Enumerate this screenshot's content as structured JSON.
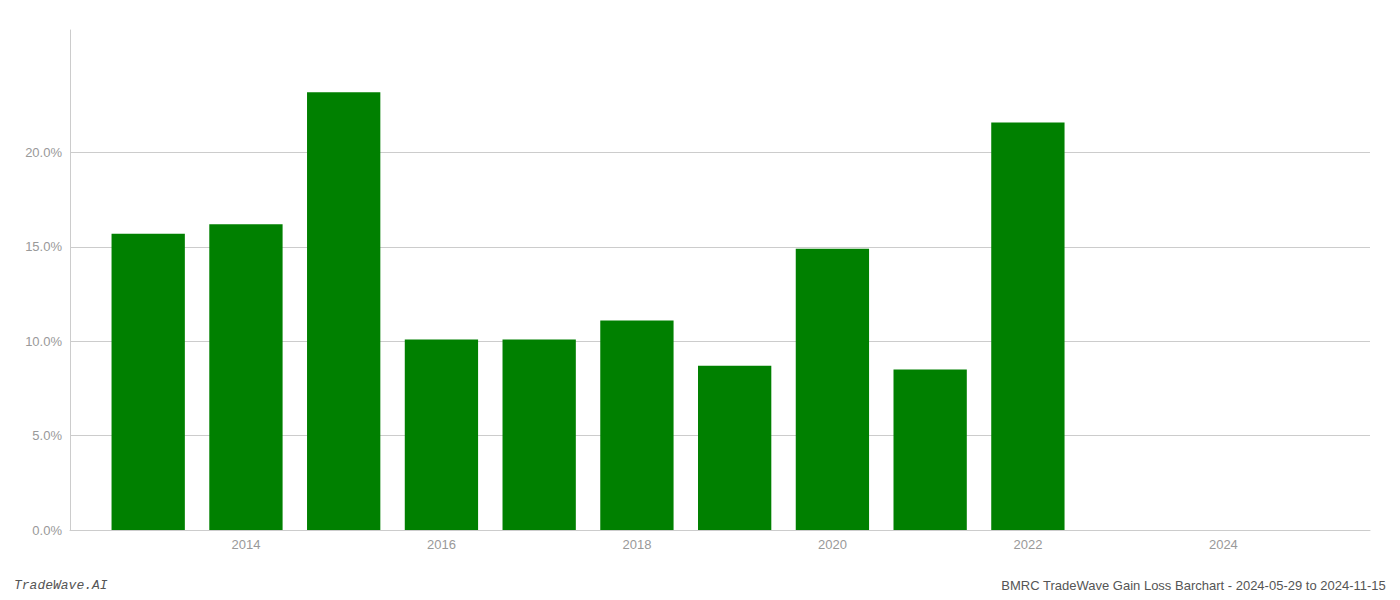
{
  "chart_data": {
    "type": "bar",
    "x": [
      2013,
      2014,
      2015,
      2016,
      2017,
      2018,
      2019,
      2020,
      2021,
      2022
    ],
    "values": [
      0.157,
      0.162,
      0.232,
      0.101,
      0.101,
      0.111,
      0.087,
      0.149,
      0.085,
      0.216
    ],
    "color": "#008000",
    "xlim": [
      2012.2,
      2025.5
    ],
    "xticks": [
      2014,
      2016,
      2018,
      2020,
      2022,
      2024
    ],
    "ylim": [
      0,
      0.265
    ],
    "yticks": [
      {
        "value": 0.0,
        "label": "0.0%"
      },
      {
        "value": 0.05,
        "label": "5.0%"
      },
      {
        "value": 0.1,
        "label": "10.0%"
      },
      {
        "value": 0.15,
        "label": "15.0%"
      },
      {
        "value": 0.2,
        "label": "20.0%"
      }
    ],
    "grid": true,
    "annotations": [
      "TradeWave.AI",
      "BMRC TradeWave Gain Loss Barchart - 2024-05-29 to 2024-11-15"
    ]
  }
}
